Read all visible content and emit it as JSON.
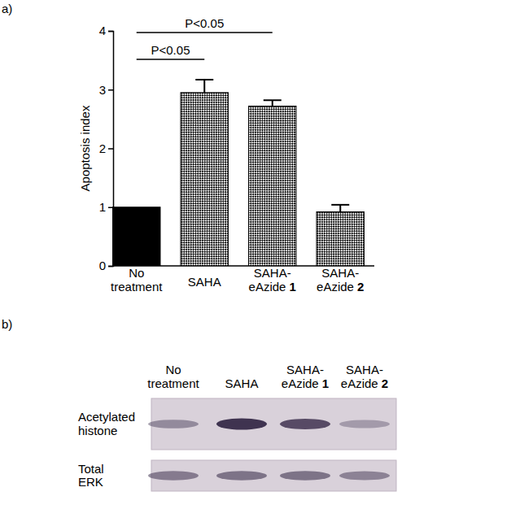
{
  "panel_labels": [
    "a)",
    "b)"
  ],
  "chart_data": {
    "type": "bar",
    "y_label": "Apoptosis index",
    "categories": [
      "No\ntreatment",
      "SAHA",
      "SAHA-\neAzide 1",
      "SAHA-\neAzide 2"
    ],
    "values": [
      1.0,
      2.95,
      2.72,
      0.92
    ],
    "errors": [
      0,
      0.22,
      0.1,
      0.12
    ],
    "colors": [
      "#000000",
      "#ffffff",
      "#ffffff",
      "#ffffff"
    ],
    "ylim": [
      0,
      4
    ],
    "yticks": [
      0,
      1,
      2,
      3,
      4
    ],
    "grid": false,
    "annotations": [
      {
        "text": "P<0.05",
        "between": [
          0,
          1
        ]
      },
      {
        "text": "P<0.05",
        "between": [
          0,
          2
        ]
      }
    ]
  },
  "blot": {
    "lanes": [
      "No\ntreatment",
      "SAHA",
      "SAHA-\neAzide 1",
      "SAHA-\neAzide 2"
    ],
    "rows": [
      {
        "label": "Acetylated\nhistone",
        "intensity": [
          0.45,
          1.0,
          0.85,
          0.35
        ]
      },
      {
        "label": "Total\nERK",
        "intensity": [
          0.55,
          0.6,
          0.6,
          0.5
        ]
      }
    ]
  }
}
